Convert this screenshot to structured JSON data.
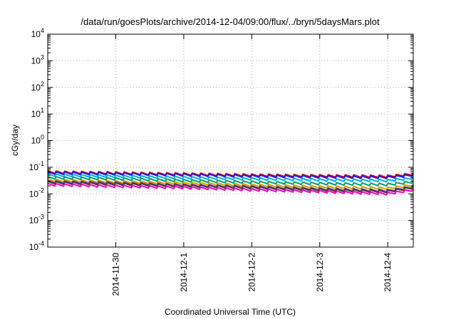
{
  "chart_data": {
    "type": "line",
    "title": "/data/run/goesPlots/archive/2014-12-04/09:00/flux/../bryn/5daysMars.plot",
    "xlabel": "Coordinated Universal Time (UTC)",
    "ylabel": "cGy/day",
    "yscale": "log",
    "ylim": [
      0.0001,
      10000
    ],
    "xlim": [
      "2014-11-29T00:00",
      "2014-12-04T09:00"
    ],
    "grid": true,
    "legend": "none",
    "y_ticks": [
      {
        "base": "10",
        "exp": "-4"
      },
      {
        "base": "10",
        "exp": "-3"
      },
      {
        "base": "10",
        "exp": "-2"
      },
      {
        "base": "10",
        "exp": "-1"
      },
      {
        "base": "10",
        "exp": "0"
      },
      {
        "base": "10",
        "exp": "1"
      },
      {
        "base": "10",
        "exp": "2"
      },
      {
        "base": "10",
        "exp": "3"
      },
      {
        "base": "10",
        "exp": "4"
      }
    ],
    "x_ticks": [
      "2014-11-30",
      "2014-12-1",
      "2014-12-2",
      "2014-12-3",
      "2014-12-4"
    ],
    "x_tick_dates": [
      "2014-11-30T00:00",
      "2014-12-01T00:00",
      "2014-12-02T00:00",
      "2014-12-03T00:00",
      "2014-12-04T00:00"
    ],
    "series": [
      {
        "color": "#e00000",
        "x": [
          "2014-11-29T00:00",
          "2014-11-30T00:00",
          "2014-12-01T00:00",
          "2014-12-02T00:00",
          "2014-12-03T00:00",
          "2014-12-04T00:00",
          "2014-12-04T09:00"
        ],
        "values": [
          0.065,
          0.06,
          0.055,
          0.05,
          0.047,
          0.045,
          0.055
        ]
      },
      {
        "color": "#1a1aff",
        "x": [
          "2014-11-29T00:00",
          "2014-11-30T00:00",
          "2014-12-01T00:00",
          "2014-12-02T00:00",
          "2014-12-03T00:00",
          "2014-12-04T00:00",
          "2014-12-04T09:00"
        ],
        "values": [
          0.06,
          0.056,
          0.051,
          0.046,
          0.043,
          0.041,
          0.05
        ]
      },
      {
        "color": "#00b0e0",
        "x": [
          "2014-11-29T00:00",
          "2014-11-30T00:00",
          "2014-12-01T00:00",
          "2014-12-02T00:00",
          "2014-12-03T00:00",
          "2014-12-04T00:00",
          "2014-12-04T09:00"
        ],
        "values": [
          0.05,
          0.045,
          0.04,
          0.036,
          0.033,
          0.031,
          0.038
        ]
      },
      {
        "color": "#00a070",
        "x": [
          "2014-11-29T00:00",
          "2014-11-30T00:00",
          "2014-12-01T00:00",
          "2014-12-02T00:00",
          "2014-12-03T00:00",
          "2014-12-04T00:00",
          "2014-12-04T09:00"
        ],
        "values": [
          0.04,
          0.036,
          0.031,
          0.027,
          0.024,
          0.022,
          0.028
        ]
      },
      {
        "color": "#d0a000",
        "x": [
          "2014-11-29T00:00",
          "2014-11-30T00:00",
          "2014-12-01T00:00",
          "2014-12-02T00:00",
          "2014-12-03T00:00",
          "2014-12-04T00:00",
          "2014-12-04T09:00"
        ],
        "values": [
          0.032,
          0.028,
          0.025,
          0.021,
          0.018,
          0.016,
          0.021
        ]
      },
      {
        "color": "#7030a0",
        "x": [
          "2014-11-29T00:00",
          "2014-11-30T00:00",
          "2014-12-01T00:00",
          "2014-12-02T00:00",
          "2014-12-03T00:00",
          "2014-12-04T00:00",
          "2014-12-04T09:00"
        ],
        "values": [
          0.028,
          0.025,
          0.021,
          0.018,
          0.015,
          0.013,
          0.018
        ]
      },
      {
        "color": "#404040",
        "x": [
          "2014-11-29T00:00",
          "2014-11-30T00:00",
          "2014-12-01T00:00",
          "2014-12-02T00:00",
          "2014-12-03T00:00",
          "2014-12-04T00:00",
          "2014-12-04T09:00"
        ],
        "values": [
          0.026,
          0.023,
          0.02,
          0.017,
          0.014,
          0.012,
          0.017
        ]
      },
      {
        "color": "#ff00c0",
        "x": [
          "2014-11-29T00:00",
          "2014-11-30T00:00",
          "2014-12-01T00:00",
          "2014-12-02T00:00",
          "2014-12-03T00:00",
          "2014-12-04T00:00",
          "2014-12-04T09:00"
        ],
        "values": [
          0.022,
          0.019,
          0.017,
          0.014,
          0.012,
          0.01,
          0.014
        ]
      }
    ]
  }
}
